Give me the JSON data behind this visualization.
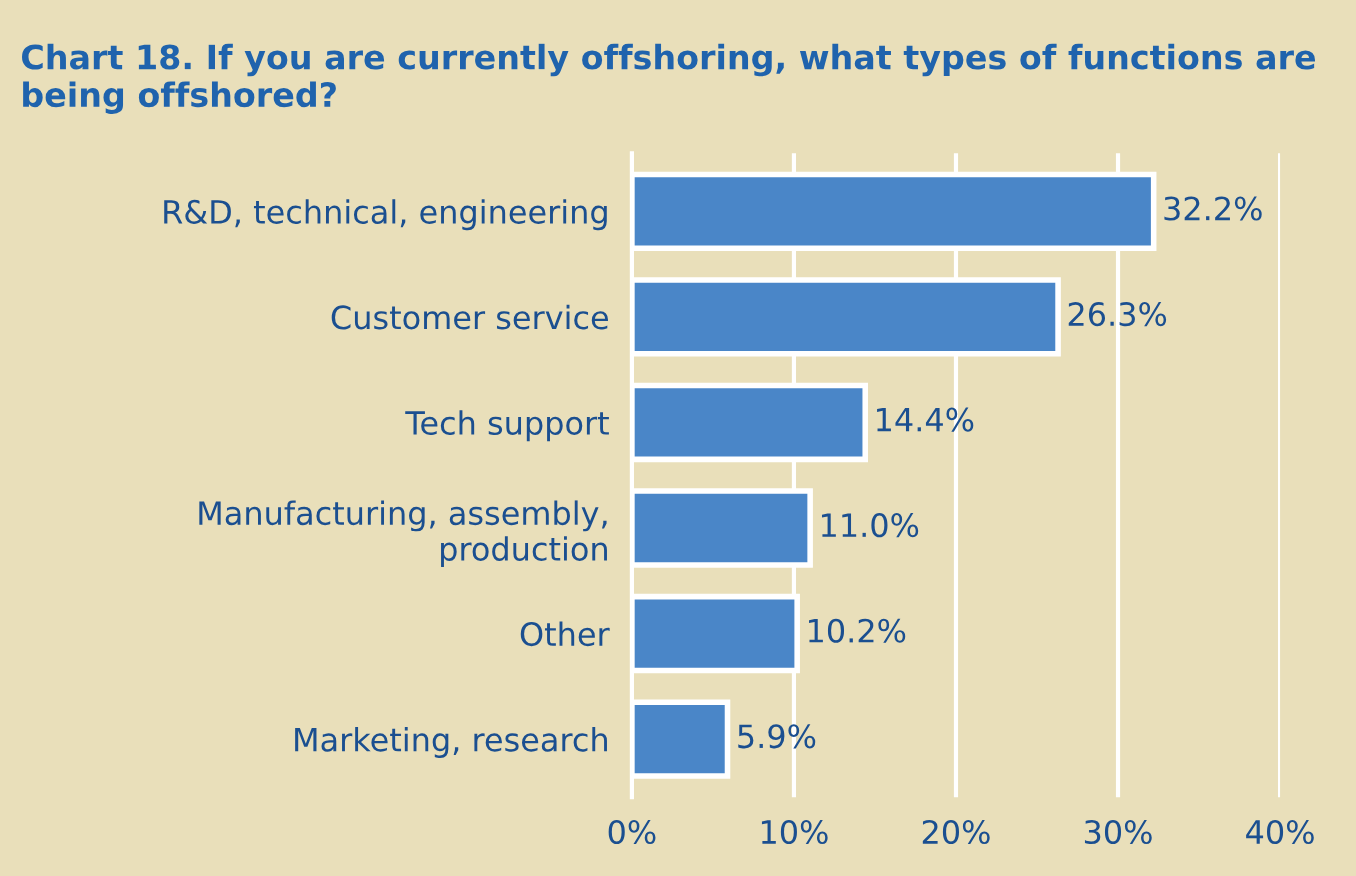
{
  "chart_data": {
    "type": "bar",
    "orientation": "horizontal",
    "title": "Chart 18. If you are currently offshoring, what types of functions are\nbeing offshored?",
    "categories": [
      "R&D, technical, engineering",
      "Customer service",
      "Tech support",
      "Manufacturing, assembly,\nproduction",
      "Other",
      "Marketing, research"
    ],
    "values": [
      32.2,
      26.3,
      14.4,
      11.0,
      10.2,
      5.9
    ],
    "value_labels": [
      "32.2%",
      "26.3%",
      "14.4%",
      "11.0%",
      "10.2%",
      "5.9%"
    ],
    "color": "#4a86c8",
    "xlim": [
      0,
      40
    ],
    "xticks": [
      {
        "value": 0,
        "label": "0%"
      },
      {
        "value": 10,
        "label": "10%"
      },
      {
        "value": 20,
        "label": "20%"
      },
      {
        "value": 30,
        "label": "30%"
      },
      {
        "value": 40,
        "label": "40%"
      }
    ],
    "grid": "x",
    "legend": false
  }
}
